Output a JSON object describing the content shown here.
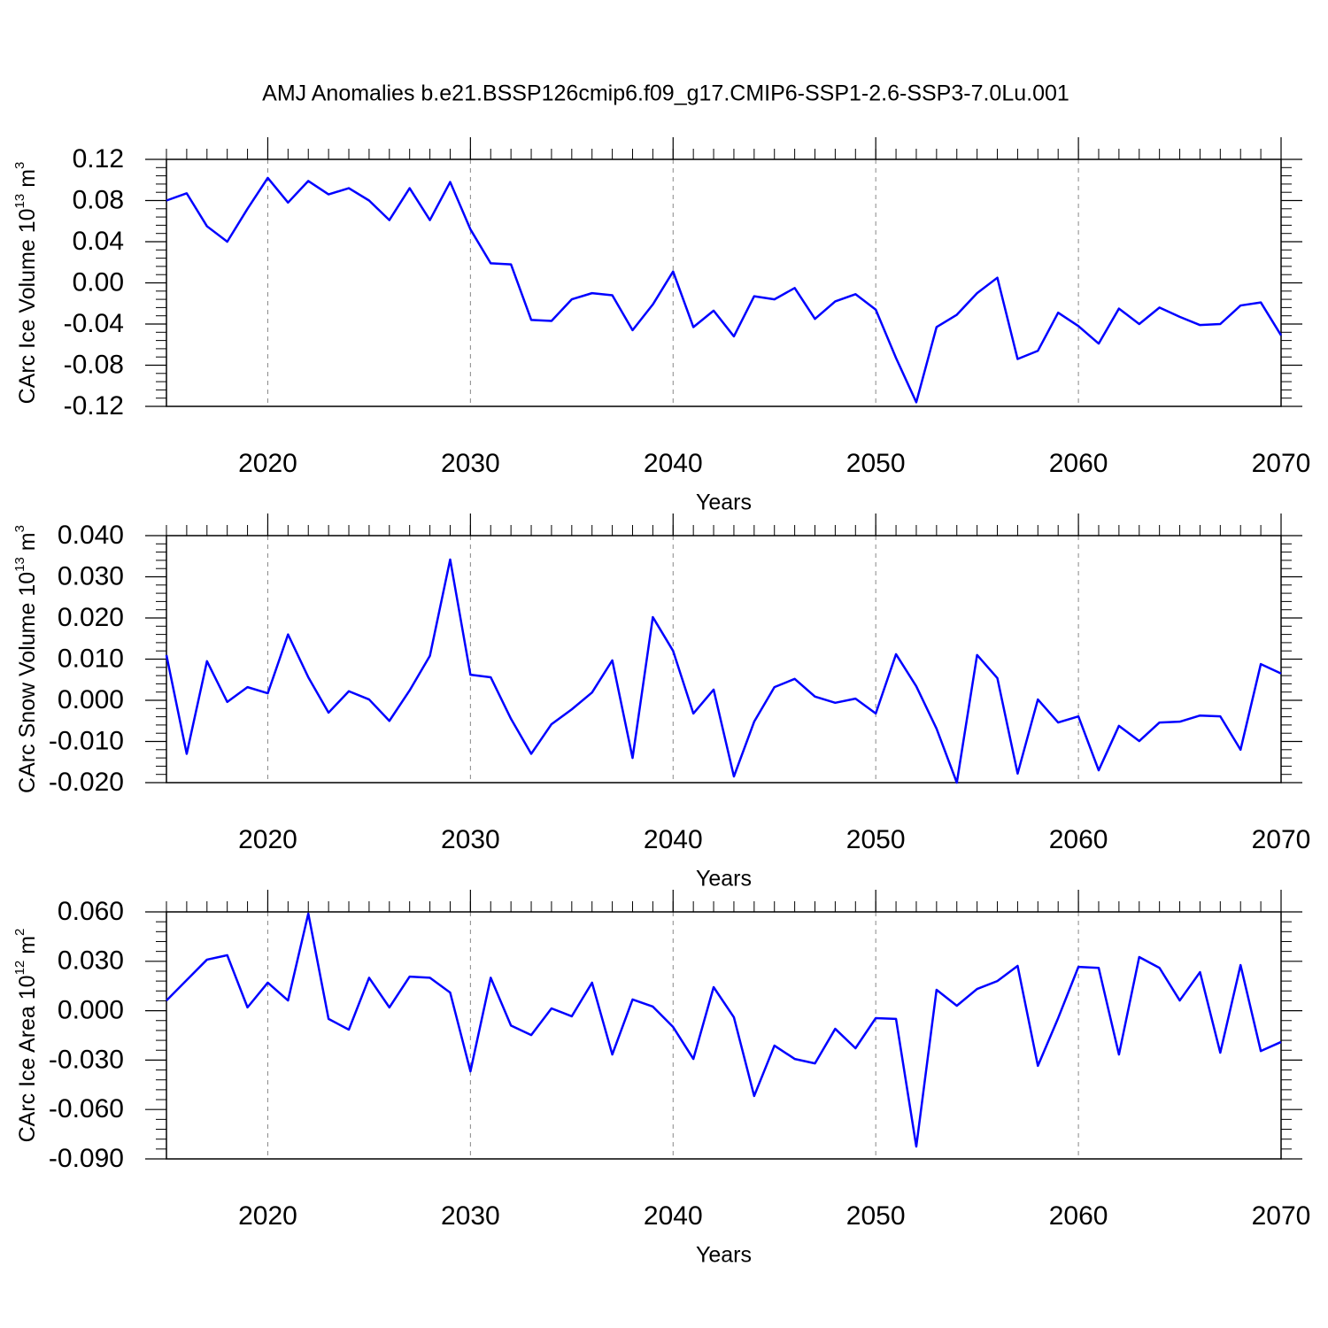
{
  "title": "AMJ Anomalies b.e21.BSSP126cmip6.f09_g17.CMIP6-SSP1-2.6-SSP3-7.0Lu.001",
  "chart_data": [
    {
      "type": "line",
      "ylabel": [
        "CArc Ice Volume 10",
        "13",
        " m",
        "3"
      ],
      "xlabel": "Years",
      "color": "#0000ff",
      "x": [
        2015,
        2016,
        2017,
        2018,
        2019,
        2020,
        2021,
        2022,
        2023,
        2024,
        2025,
        2026,
        2027,
        2028,
        2029,
        2030,
        2031,
        2032,
        2033,
        2034,
        2035,
        2036,
        2037,
        2038,
        2039,
        2040,
        2041,
        2042,
        2043,
        2044,
        2045,
        2046,
        2047,
        2048,
        2049,
        2050,
        2051,
        2052,
        2053,
        2054,
        2055,
        2056,
        2057,
        2058,
        2059,
        2060,
        2061,
        2062,
        2063,
        2064,
        2065,
        2066,
        2067,
        2068,
        2069,
        2070
      ],
      "values": [
        0.08,
        0.087,
        0.055,
        0.04,
        0.072,
        0.102,
        0.078,
        0.099,
        0.086,
        0.092,
        0.08,
        0.061,
        0.092,
        0.061,
        0.098,
        0.052,
        0.019,
        0.018,
        -0.036,
        -0.037,
        -0.016,
        -0.01,
        -0.012,
        -0.046,
        -0.021,
        0.011,
        -0.043,
        -0.027,
        -0.052,
        -0.013,
        -0.016,
        -0.005,
        -0.035,
        -0.018,
        -0.011,
        -0.026,
        -0.073,
        -0.116,
        -0.043,
        -0.031,
        -0.01,
        0.005,
        -0.074,
        -0.066,
        -0.029,
        -0.042,
        -0.059,
        -0.025,
        -0.04,
        -0.024,
        -0.033,
        -0.041,
        -0.04,
        -0.022,
        -0.019,
        -0.051
      ],
      "xlim": [
        2015,
        2070
      ],
      "xticks": [
        2020,
        2030,
        2040,
        2050,
        2060,
        2070
      ],
      "ylim": [
        -0.12,
        0.12
      ],
      "yticks": [
        0.12,
        0.08,
        0.04,
        {
          "value": 0,
          "label": "0.00"
        },
        -0.04,
        -0.08,
        -0.12
      ],
      "grid": true
    },
    {
      "type": "line",
      "ylabel": [
        "CArc Snow Volume 10",
        "13",
        " m",
        "3"
      ],
      "xlabel": "Years",
      "color": "#0000ff",
      "x": [
        2015,
        2016,
        2017,
        2018,
        2019,
        2020,
        2021,
        2022,
        2023,
        2024,
        2025,
        2026,
        2027,
        2028,
        2029,
        2030,
        2031,
        2032,
        2033,
        2034,
        2035,
        2036,
        2037,
        2038,
        2039,
        2040,
        2041,
        2042,
        2043,
        2044,
        2045,
        2046,
        2047,
        2048,
        2049,
        2050,
        2051,
        2052,
        2053,
        2054,
        2055,
        2056,
        2057,
        2058,
        2059,
        2060,
        2061,
        2062,
        2063,
        2064,
        2065,
        2066,
        2067,
        2068,
        2069,
        2070
      ],
      "values": [
        0.011,
        -0.013,
        0.0095,
        -0.0004,
        0.0032,
        0.0017,
        0.016,
        0.0056,
        -0.003,
        0.0022,
        0.0002,
        -0.005,
        0.0024,
        0.0108,
        0.0342,
        0.0062,
        0.0056,
        -0.0045,
        -0.013,
        -0.0058,
        -0.0022,
        0.0019,
        0.0097,
        -0.014,
        0.0202,
        0.012,
        -0.0032,
        0.0026,
        -0.0185,
        -0.0052,
        0.0032,
        0.0052,
        0.0009,
        -0.0006,
        0.0004,
        -0.0032,
        0.0112,
        0.0034,
        -0.0069,
        -0.02,
        0.011,
        0.0054,
        -0.0178,
        0.0002,
        -0.0054,
        -0.0039,
        -0.017,
        -0.0062,
        -0.0099,
        -0.0054,
        -0.0052,
        -0.0037,
        -0.0039,
        -0.012,
        0.0088,
        0.0065
      ],
      "xlim": [
        2015,
        2070
      ],
      "xticks": [
        2020,
        2030,
        2040,
        2050,
        2060,
        2070
      ],
      "ylim": [
        -0.02,
        0.04
      ],
      "yticks": [
        {
          "value": 0.04,
          "label": "0.040"
        },
        {
          "value": 0.03,
          "label": "0.030"
        },
        {
          "value": 0.02,
          "label": "0.020"
        },
        {
          "value": 0.01,
          "label": "0.010"
        },
        {
          "value": 0,
          "label": "0.000"
        },
        {
          "value": -0.01,
          "label": "-0.010"
        },
        {
          "value": -0.02,
          "label": "-0.020"
        }
      ],
      "grid": true
    },
    {
      "type": "line",
      "ylabel": [
        "CArc Ice Area 10",
        "12",
        " m",
        "2"
      ],
      "xlabel": "Years",
      "color": "#0000ff",
      "x": [
        2015,
        2016,
        2017,
        2018,
        2019,
        2020,
        2021,
        2022,
        2023,
        2024,
        2025,
        2026,
        2027,
        2028,
        2029,
        2030,
        2031,
        2032,
        2033,
        2034,
        2035,
        2036,
        2037,
        2038,
        2039,
        2040,
        2041,
        2042,
        2043,
        2044,
        2045,
        2046,
        2047,
        2048,
        2049,
        2050,
        2051,
        2052,
        2053,
        2054,
        2055,
        2056,
        2057,
        2058,
        2059,
        2060,
        2061,
        2062,
        2063,
        2064,
        2065,
        2066,
        2067,
        2068,
        2069,
        2070
      ],
      "values": [
        0.0062,
        0.0186,
        0.031,
        0.0337,
        0.002,
        0.017,
        0.0062,
        0.059,
        -0.005,
        -0.0115,
        0.02,
        0.002,
        0.0207,
        0.02,
        0.011,
        -0.0368,
        0.02,
        -0.009,
        -0.0148,
        0.0014,
        -0.0034,
        0.017,
        -0.0266,
        0.0068,
        0.0025,
        -0.0099,
        -0.0293,
        0.0143,
        -0.004,
        -0.0518,
        -0.0212,
        -0.0293,
        -0.032,
        -0.011,
        -0.0228,
        -0.0045,
        -0.005,
        -0.0825,
        0.0127,
        0.003,
        0.0132,
        0.018,
        0.0272,
        -0.0335,
        -0.0045,
        0.0266,
        0.026,
        -0.0266,
        0.0326,
        0.026,
        0.0062,
        0.0234,
        -0.0255,
        0.0277,
        -0.0245,
        -0.019
      ],
      "xlim": [
        2015,
        2070
      ],
      "xticks": [
        2020,
        2030,
        2040,
        2050,
        2060,
        2070
      ],
      "ylim": [
        -0.09,
        0.06
      ],
      "yticks": [
        {
          "value": 0.06,
          "label": "0.060"
        },
        {
          "value": 0.03,
          "label": "0.030"
        },
        {
          "value": 0,
          "label": "0.000"
        },
        {
          "value": -0.03,
          "label": "-0.030"
        },
        {
          "value": -0.06,
          "label": "-0.060"
        },
        {
          "value": -0.09,
          "label": "-0.090"
        }
      ],
      "grid": true
    }
  ]
}
